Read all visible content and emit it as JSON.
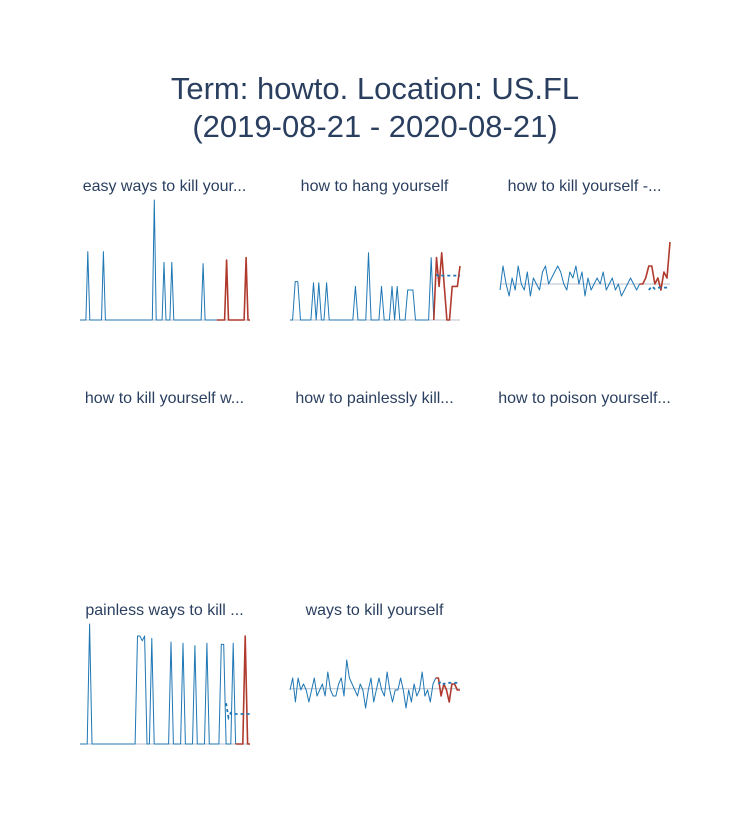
{
  "title": {
    "line1": "Term: howto. Location: US.FL",
    "line2": "(2019-08-21 - 2020-08-21)"
  },
  "colors": {
    "history": "#1f77b4",
    "recent": "#b03a2e",
    "baseline": "#b8c2cc",
    "forecast": "#1f77b4"
  },
  "chart_data": [
    {
      "type": "line",
      "title": "easy ways to kill your...",
      "ylim": [
        0,
        100
      ],
      "history": [
        0,
        0,
        0,
        0,
        57,
        0,
        0,
        0,
        0,
        0,
        0,
        0,
        57,
        0,
        0,
        0,
        0,
        0,
        0,
        0,
        0,
        0,
        0,
        0,
        0,
        0,
        0,
        0,
        0,
        0,
        0,
        0,
        0,
        0,
        0,
        0,
        0,
        0,
        100,
        0,
        0,
        0,
        0,
        48,
        0,
        0,
        0,
        48,
        0,
        0,
        0,
        0,
        0,
        0,
        0,
        0,
        0,
        0,
        0,
        0,
        0,
        0,
        0,
        47,
        0,
        0,
        0,
        0,
        0,
        0,
        0
      ],
      "recent": [
        0,
        0,
        0,
        0,
        50,
        0,
        0,
        0,
        0,
        0,
        0,
        0,
        0,
        0,
        52,
        0,
        0
      ],
      "baseline": null,
      "forecast": null
    },
    {
      "type": "line",
      "title": "how to hang yourself",
      "ylim": [
        0,
        100
      ],
      "history": [
        0,
        0,
        32,
        32,
        0,
        0,
        0,
        0,
        0,
        31,
        0,
        31,
        0,
        0,
        31,
        0,
        0,
        0,
        0,
        0,
        0,
        0,
        0,
        0,
        0,
        28,
        0,
        0,
        0,
        0,
        56,
        0,
        0,
        0,
        0,
        28,
        0,
        0,
        0,
        28,
        0,
        28,
        0,
        0,
        0,
        25,
        25,
        25,
        0,
        0,
        0,
        0,
        0,
        0,
        52,
        0
      ],
      "recent": [
        52,
        28,
        56,
        28,
        0,
        0,
        28,
        28,
        28,
        45
      ],
      "baseline": null,
      "forecast": [
        38,
        36,
        37,
        37,
        37,
        37,
        37,
        37,
        37,
        37
      ]
    },
    {
      "type": "line",
      "title": "how to kill yourself -...",
      "ylim": [
        0,
        100
      ],
      "history": [
        25,
        45,
        30,
        20,
        35,
        25,
        45,
        30,
        25,
        40,
        20,
        35,
        30,
        25,
        40,
        45,
        30,
        35,
        40,
        45,
        40,
        30,
        25,
        40,
        35,
        45,
        30,
        40,
        20,
        35,
        25,
        30,
        35,
        30,
        40,
        25,
        30,
        35,
        25,
        30,
        20,
        25,
        30,
        35,
        30,
        25,
        30
      ],
      "recent": [
        30,
        35,
        45,
        45,
        30,
        35,
        25,
        40,
        35,
        65
      ],
      "baseline": 30,
      "forecast": [
        25,
        28,
        26,
        27,
        27,
        27,
        27,
        27
      ]
    },
    {
      "type": "line",
      "title": "how to kill yourself w...",
      "ylim": [
        0,
        100
      ],
      "history": [],
      "recent": [],
      "baseline": null,
      "forecast": null
    },
    {
      "type": "line",
      "title": "how to painlessly kill...",
      "ylim": [
        0,
        100
      ],
      "history": [],
      "recent": [],
      "baseline": null,
      "forecast": null
    },
    {
      "type": "line",
      "title": "how to poison yourself...",
      "ylim": [
        0,
        100
      ],
      "history": [],
      "recent": [],
      "baseline": null,
      "forecast": null
    },
    {
      "type": "line",
      "title": "painless ways to kill ...",
      "ylim": [
        0,
        100
      ],
      "history": [
        0,
        0,
        0,
        0,
        100,
        0,
        0,
        0,
        0,
        0,
        0,
        0,
        0,
        0,
        0,
        0,
        0,
        0,
        0,
        0,
        0,
        0,
        0,
        0,
        90,
        90,
        86,
        90,
        0,
        0,
        88,
        0,
        0,
        0,
        0,
        0,
        0,
        0,
        85,
        0,
        0,
        0,
        0,
        84,
        0,
        0,
        0,
        0,
        82,
        0,
        0,
        0,
        0,
        84,
        0,
        0,
        0,
        0,
        0,
        83,
        83,
        0,
        0,
        0,
        84,
        0
      ],
      "recent": [
        0,
        0,
        0,
        90,
        0,
        0
      ],
      "baseline": null,
      "forecast": [
        34,
        22,
        26,
        25,
        25,
        25,
        25,
        25,
        25,
        25,
        25
      ]
    },
    {
      "type": "line",
      "title": "ways to kill yourself",
      "ylim": [
        0,
        100
      ],
      "history": [
        45,
        55,
        35,
        55,
        45,
        50,
        45,
        35,
        45,
        55,
        40,
        45,
        50,
        40,
        60,
        45,
        40,
        40,
        50,
        55,
        40,
        70,
        55,
        50,
        45,
        40,
        50,
        45,
        30,
        45,
        55,
        35,
        45,
        55,
        45,
        40,
        60,
        45,
        35,
        45,
        45,
        55,
        45,
        30,
        45,
        35,
        50,
        40,
        45,
        60,
        40,
        45,
        35,
        50,
        55
      ],
      "recent": [
        55,
        40,
        50,
        45,
        35,
        50,
        50,
        45,
        45
      ],
      "baseline": 46,
      "forecast": [
        50,
        52,
        50,
        51,
        51,
        51,
        51,
        51,
        51
      ]
    }
  ]
}
